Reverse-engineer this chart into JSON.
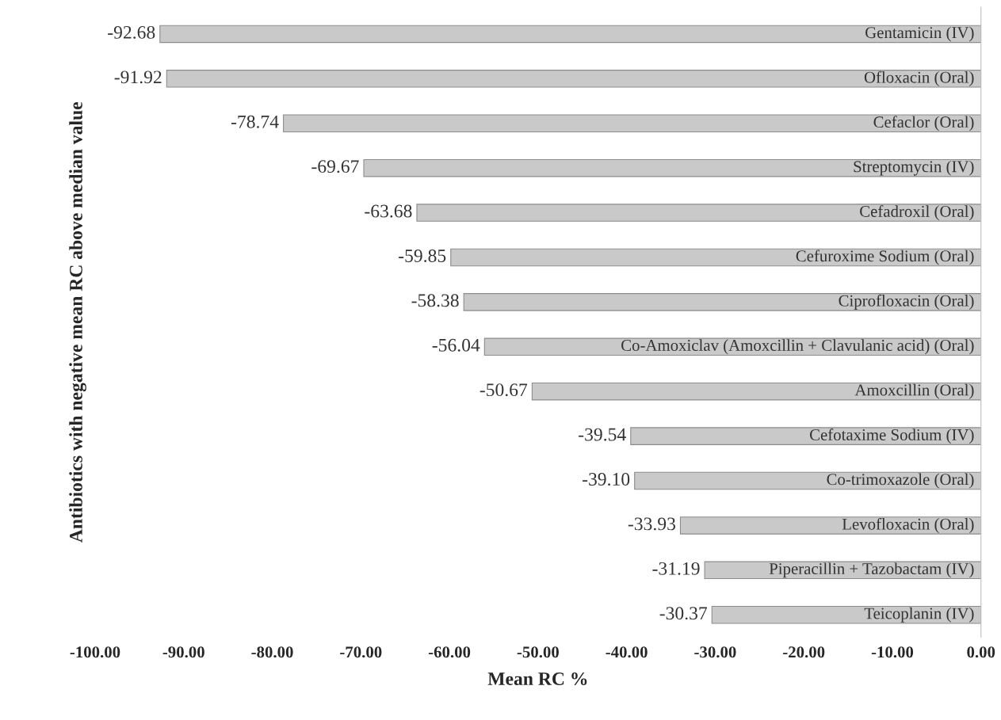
{
  "chart_data": {
    "type": "bar",
    "orientation": "horizontal",
    "xlabel": "Mean RC %",
    "ylabel": "Antibiotics with negative mean RC above median value",
    "categories": [
      "Gentamicin (IV)",
      "Ofloxacin (Oral)",
      "Cefaclor (Oral)",
      "Streptomycin (IV)",
      "Cefadroxil (Oral)",
      "Cefuroxime Sodium (Oral)",
      "Ciprofloxacin (Oral)",
      "Co-Amoxiclav (Amoxcillin + Clavulanic acid) (Oral)",
      "Amoxcillin (Oral)",
      "Cefotaxime Sodium (IV)",
      "Co-trimoxazole (Oral)",
      "Levofloxacin (Oral)",
      "Piperacillin + Tazobactam (IV)",
      "Teicoplanin (IV)"
    ],
    "values": [
      -92.68,
      -91.92,
      -78.74,
      -69.67,
      -63.68,
      -59.85,
      -58.38,
      -56.04,
      -50.67,
      -39.54,
      -39.1,
      -33.93,
      -31.19,
      -30.37
    ],
    "value_labels": [
      "-92.68",
      "-91.92",
      "-78.74",
      "-69.67",
      "-63.68",
      "-59.85",
      "-58.38",
      "-56.04",
      "-50.67",
      "-39.54",
      "-39.10",
      "-33.93",
      "-31.19",
      "-30.37"
    ],
    "color": "#c9c9c9",
    "xlim": [
      -100,
      0
    ],
    "xticks": [
      {
        "value": -100,
        "label": "-100.00"
      },
      {
        "value": -90,
        "label": "-90.00"
      },
      {
        "value": -80,
        "label": "-80.00"
      },
      {
        "value": -70,
        "label": "-70.00"
      },
      {
        "value": -60,
        "label": "-60.00"
      },
      {
        "value": -50,
        "label": "-50.00"
      },
      {
        "value": -40,
        "label": "-40.00"
      },
      {
        "value": -30,
        "label": "-30.00"
      },
      {
        "value": -20,
        "label": "-20.00"
      },
      {
        "value": -10,
        "label": "-10.00"
      },
      {
        "value": 0,
        "label": "0.00"
      }
    ],
    "tick_labels": "x",
    "grid": false,
    "legend": false
  }
}
